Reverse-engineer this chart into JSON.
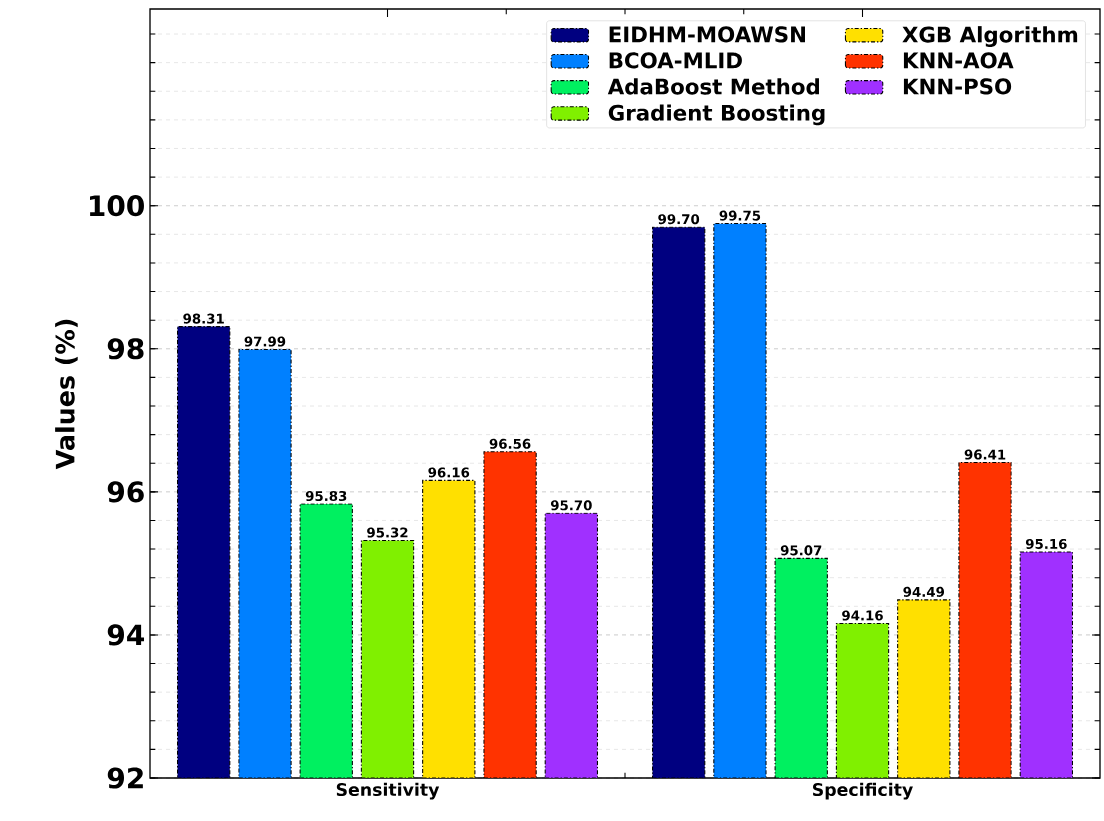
{
  "chart_data": {
    "type": "bar",
    "ylabel": "Values (%)",
    "categories": [
      "Sensitivity",
      "Specificity"
    ],
    "series": [
      {
        "name": "EIDHM-MOAWSN",
        "color": "#000080",
        "values": [
          98.31,
          99.7
        ],
        "value_labels": [
          "98.31",
          "99.70"
        ]
      },
      {
        "name": "BCOA-MLID",
        "color": "#0080ff",
        "values": [
          97.99,
          99.75
        ],
        "value_labels": [
          "97.99",
          "99.75"
        ]
      },
      {
        "name": "AdaBoost Method",
        "color": "#00f060",
        "values": [
          95.83,
          95.07
        ],
        "value_labels": [
          "95.83",
          "95.07"
        ]
      },
      {
        "name": "Gradient Boosting",
        "color": "#80f000",
        "values": [
          95.32,
          94.16
        ],
        "value_labels": [
          "95.32",
          "94.16"
        ]
      },
      {
        "name": "XGB Algorithm",
        "color": "#ffe000",
        "values": [
          96.16,
          94.49
        ],
        "value_labels": [
          "96.16",
          "94.49"
        ]
      },
      {
        "name": "KNN-AOA",
        "color": "#ff3300",
        "values": [
          96.56,
          96.41
        ],
        "value_labels": [
          "96.56",
          "96.41"
        ]
      },
      {
        "name": "KNN-PSO",
        "color": "#a030ff",
        "values": [
          95.7,
          95.16
        ],
        "value_labels": [
          "95.70",
          "95.16"
        ]
      }
    ],
    "ylim": [
      92,
      102.75
    ],
    "yticks": [
      92,
      94,
      96,
      98,
      100
    ],
    "grid": "y",
    "legend": "top right"
  }
}
